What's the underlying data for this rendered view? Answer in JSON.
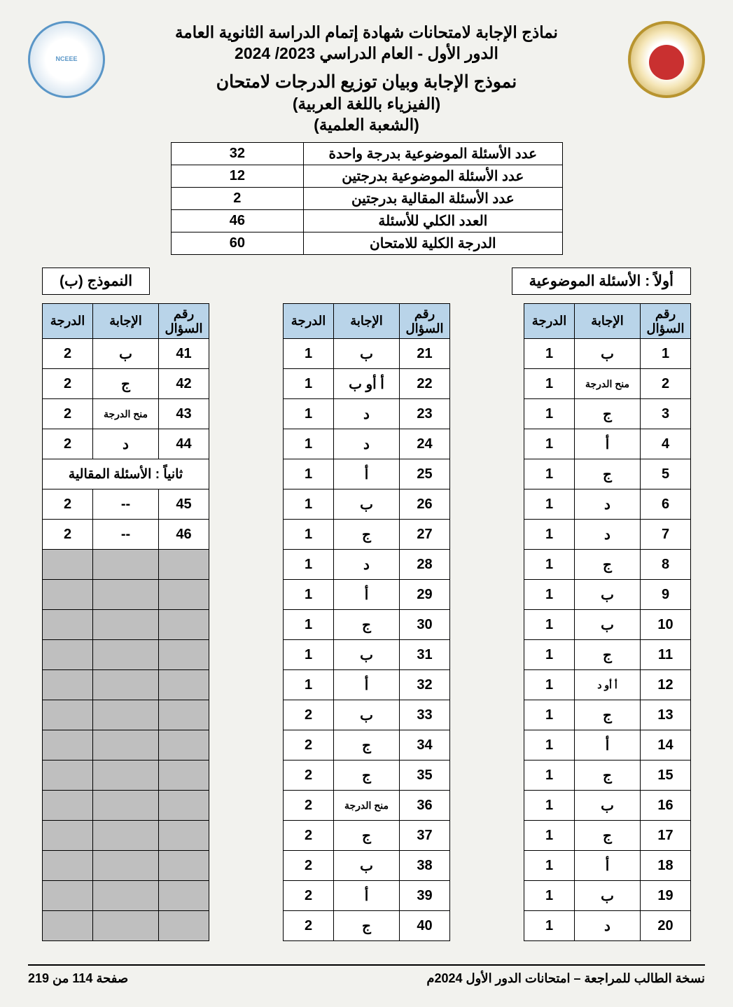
{
  "header": {
    "line1": "نماذج الإجابة لامتحانات شهادة إتمام الدراسة الثانوية العامة",
    "line2": "الدور الأول - العام الدراسي 2023/ 2024",
    "line3": "نموذج الإجابة وبيان توزيع الدرجات لامتحان",
    "line4": "(الفيزياء باللغة العربية)",
    "line5": "(الشعبة العلمية)",
    "logo_left_text": "NCEEE"
  },
  "summary": {
    "rows": [
      {
        "label": "عدد الأسئلة الموضوعية بدرجة واحدة",
        "value": "32"
      },
      {
        "label": "عدد الأسئلة الموضوعية بدرجتين",
        "value": "12"
      },
      {
        "label": "عدد الأسئلة المقالية بدرجتين",
        "value": "2"
      },
      {
        "label": "العدد الكلي للأسئلة",
        "value": "46"
      },
      {
        "label": "الدرجة الكلية للامتحان",
        "value": "60"
      }
    ]
  },
  "section": {
    "first_label": "أولاً : الأسئلة الموضوعية",
    "model_label": "النموذج (ب)"
  },
  "columns": {
    "q": "رقم السؤال",
    "a": "الإجابة",
    "s": "الدرجة"
  },
  "essay_header": "ثانياً : الأسئلة المقالية",
  "answers": {
    "col1": [
      {
        "q": "1",
        "a": "ب",
        "s": "1"
      },
      {
        "q": "2",
        "a": "منح الدرجة",
        "s": "1",
        "small": true
      },
      {
        "q": "3",
        "a": "ج",
        "s": "1"
      },
      {
        "q": "4",
        "a": "أ",
        "s": "1"
      },
      {
        "q": "5",
        "a": "ج",
        "s": "1"
      },
      {
        "q": "6",
        "a": "د",
        "s": "1"
      },
      {
        "q": "7",
        "a": "د",
        "s": "1"
      },
      {
        "q": "8",
        "a": "ج",
        "s": "1"
      },
      {
        "q": "9",
        "a": "ب",
        "s": "1"
      },
      {
        "q": "10",
        "a": "ب",
        "s": "1"
      },
      {
        "q": "11",
        "a": "ج",
        "s": "1"
      },
      {
        "q": "12",
        "a": "أ  أو  د",
        "s": "1",
        "small": true
      },
      {
        "q": "13",
        "a": "ج",
        "s": "1"
      },
      {
        "q": "14",
        "a": "أ",
        "s": "1"
      },
      {
        "q": "15",
        "a": "ج",
        "s": "1"
      },
      {
        "q": "16",
        "a": "ب",
        "s": "1"
      },
      {
        "q": "17",
        "a": "ج",
        "s": "1"
      },
      {
        "q": "18",
        "a": "أ",
        "s": "1"
      },
      {
        "q": "19",
        "a": "ب",
        "s": "1"
      },
      {
        "q": "20",
        "a": "د",
        "s": "1"
      }
    ],
    "col2": [
      {
        "q": "21",
        "a": "ب",
        "s": "1"
      },
      {
        "q": "22",
        "a": "أ  أو  ب",
        "s": "1"
      },
      {
        "q": "23",
        "a": "د",
        "s": "1"
      },
      {
        "q": "24",
        "a": "د",
        "s": "1"
      },
      {
        "q": "25",
        "a": "أ",
        "s": "1"
      },
      {
        "q": "26",
        "a": "ب",
        "s": "1"
      },
      {
        "q": "27",
        "a": "ج",
        "s": "1"
      },
      {
        "q": "28",
        "a": "د",
        "s": "1"
      },
      {
        "q": "29",
        "a": "أ",
        "s": "1"
      },
      {
        "q": "30",
        "a": "ج",
        "s": "1"
      },
      {
        "q": "31",
        "a": "ب",
        "s": "1"
      },
      {
        "q": "32",
        "a": "أ",
        "s": "1"
      },
      {
        "q": "33",
        "a": "ب",
        "s": "2"
      },
      {
        "q": "34",
        "a": "ج",
        "s": "2"
      },
      {
        "q": "35",
        "a": "ج",
        "s": "2"
      },
      {
        "q": "36",
        "a": "منح الدرجة",
        "s": "2",
        "small": true
      },
      {
        "q": "37",
        "a": "ج",
        "s": "2"
      },
      {
        "q": "38",
        "a": "ب",
        "s": "2"
      },
      {
        "q": "39",
        "a": "أ",
        "s": "2"
      },
      {
        "q": "40",
        "a": "ج",
        "s": "2"
      }
    ],
    "col3": [
      {
        "q": "41",
        "a": "ب",
        "s": "2"
      },
      {
        "q": "42",
        "a": "ج",
        "s": "2"
      },
      {
        "q": "43",
        "a": "منح الدرجة",
        "s": "2",
        "small": true
      },
      {
        "q": "44",
        "a": "د",
        "s": "2"
      }
    ],
    "col3_essay": [
      {
        "q": "45",
        "a": "--",
        "s": "2"
      },
      {
        "q": "46",
        "a": "--",
        "s": "2"
      }
    ],
    "grey_rows": 13
  },
  "footer": {
    "right": "نسخة الطالب للمراجعة – امتحانات الدور الأول 2024م",
    "left": "صفحة  114 من  219"
  },
  "colors": {
    "header_bg": "#b9d4e9",
    "grey_cell": "#bfbfbf",
    "page_bg": "#f2f2ee"
  }
}
